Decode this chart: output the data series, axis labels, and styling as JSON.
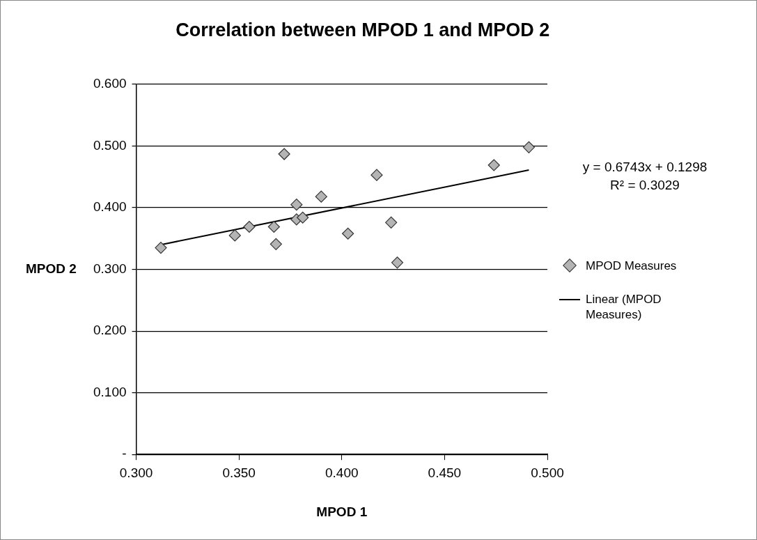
{
  "chart_data": {
    "type": "scatter",
    "title": "Correlation between MPOD 1 and MPOD 2",
    "xlabel": "MPOD 1",
    "ylabel": "MPOD 2",
    "annotations": [
      "y = 0.6743x + 0.1298",
      "R² = 0.3029"
    ],
    "xlim": [
      0.3,
      0.5
    ],
    "xticks": [
      {
        "value": 0.3,
        "label": "0.300"
      },
      {
        "value": 0.35,
        "label": "0.350"
      },
      {
        "value": 0.4,
        "label": "0.400"
      },
      {
        "value": 0.45,
        "label": "0.450"
      },
      {
        "value": 0.5,
        "label": "0.500"
      }
    ],
    "ylim": [
      0,
      0.6
    ],
    "yticks": [
      {
        "value": 0,
        "label": "-"
      },
      {
        "value": 0.1,
        "label": "0.100"
      },
      {
        "value": 0.2,
        "label": "0.200"
      },
      {
        "value": 0.3,
        "label": "0.300"
      },
      {
        "value": 0.4,
        "label": "0.400"
      },
      {
        "value": 0.5,
        "label": "0.500"
      },
      {
        "value": 0.6,
        "label": "0.600"
      }
    ],
    "grid": "y",
    "legend": "right",
    "series": [
      {
        "name": "MPOD Measures",
        "color": "#b4b4b4",
        "marker": "diamond",
        "x": [
          0.312,
          0.348,
          0.355,
          0.367,
          0.368,
          0.372,
          0.378,
          0.378,
          0.381,
          0.39,
          0.403,
          0.417,
          0.424,
          0.427,
          0.474,
          0.491
        ],
        "values": [
          0.335,
          0.355,
          0.369,
          0.369,
          0.341,
          0.487,
          0.405,
          0.381,
          0.384,
          0.418,
          0.358,
          0.453,
          0.376,
          0.311,
          0.469,
          0.498
        ]
      },
      {
        "name": "Linear (MPOD Measures)",
        "type": "line",
        "color": "#000000",
        "marker": "none",
        "line_style": "solid",
        "x": [
          0.312,
          0.491
        ],
        "values": [
          0.34,
          0.461
        ]
      }
    ]
  }
}
